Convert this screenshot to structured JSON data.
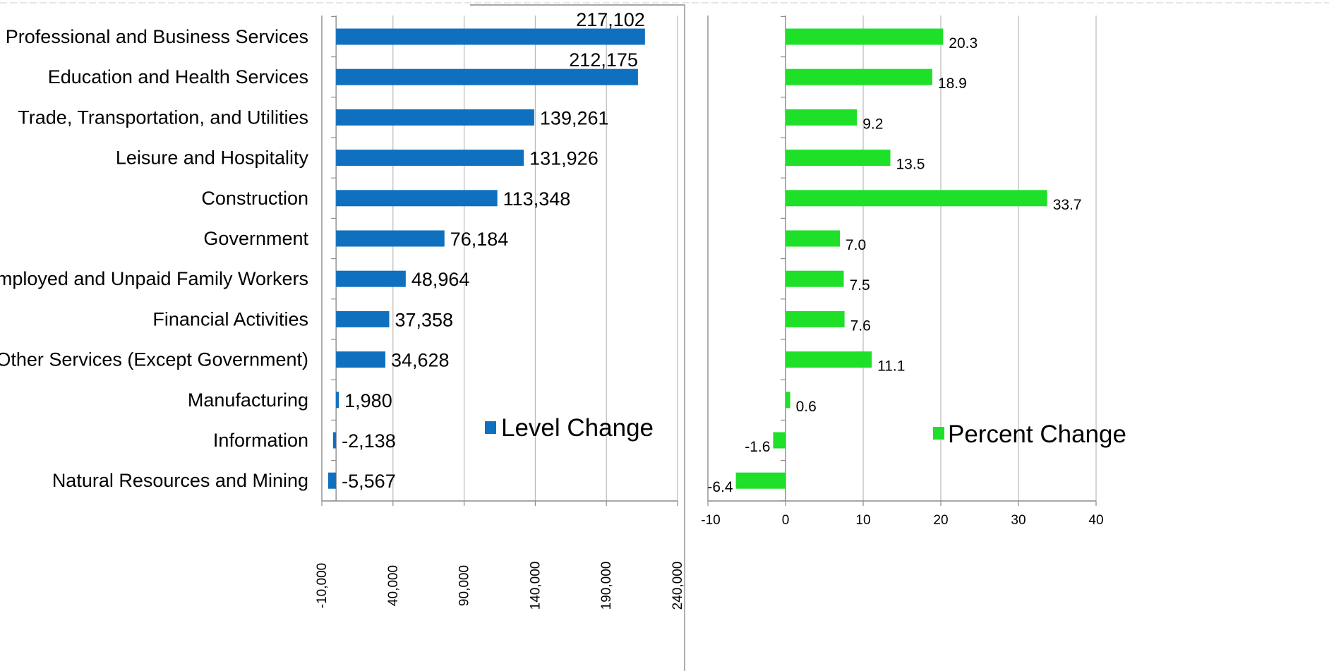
{
  "colors": {
    "level_bar": "#1070c0",
    "percent_bar": "#1ee028"
  },
  "chart_data": [
    {
      "type": "bar",
      "orientation": "horizontal",
      "categories": [
        "Professional and Business Services",
        "Education and Health Services",
        "Trade, Transportation, and Utilities",
        "Leisure and Hospitality",
        "Construction",
        "Government",
        "Self-Employed and Unpaid Family Workers",
        "Financial Activities",
        "Other Services (Except Government)",
        "Manufacturing",
        "Information",
        "Natural Resources and Mining"
      ],
      "series": [
        {
          "name": "Level Change",
          "values": [
            217102,
            212175,
            139261,
            131926,
            113348,
            76184,
            48964,
            37358,
            34628,
            1980,
            -2138,
            -5567
          ],
          "labels": [
            "217,102",
            "212,175",
            "139,261",
            "131,926",
            "113,348",
            "76,184",
            "48,964",
            "37,358",
            "34,628",
            "1,980",
            "-2,138",
            "-5,567"
          ]
        }
      ],
      "xlim": [
        -10000,
        240000
      ],
      "xticks": [
        "-10,000",
        "40,000",
        "90,000",
        "140,000",
        "190,000",
        "240,000"
      ],
      "xtick_values": [
        -10000,
        40000,
        90000,
        140000,
        190000,
        240000
      ],
      "grid": true,
      "legend": "bottom-right"
    },
    {
      "type": "bar",
      "orientation": "horizontal",
      "series": [
        {
          "name": "Percent Change",
          "values": [
            20.3,
            18.9,
            9.2,
            13.5,
            33.7,
            7.0,
            7.5,
            7.6,
            11.1,
            0.6,
            -1.6,
            -6.4
          ],
          "labels": [
            "20.3",
            "18.9",
            "9.2",
            "13.5",
            "33.7",
            "7.0",
            "7.5",
            "7.6",
            "11.1",
            "0.6",
            "-1.6",
            "-6.4"
          ]
        }
      ],
      "xlim": [
        -10,
        40
      ],
      "xticks": [
        "-10",
        "0",
        "10",
        "20",
        "30",
        "40"
      ],
      "xtick_values": [
        -10,
        0,
        10,
        20,
        30,
        40
      ],
      "grid": true,
      "legend": "bottom-right"
    }
  ]
}
